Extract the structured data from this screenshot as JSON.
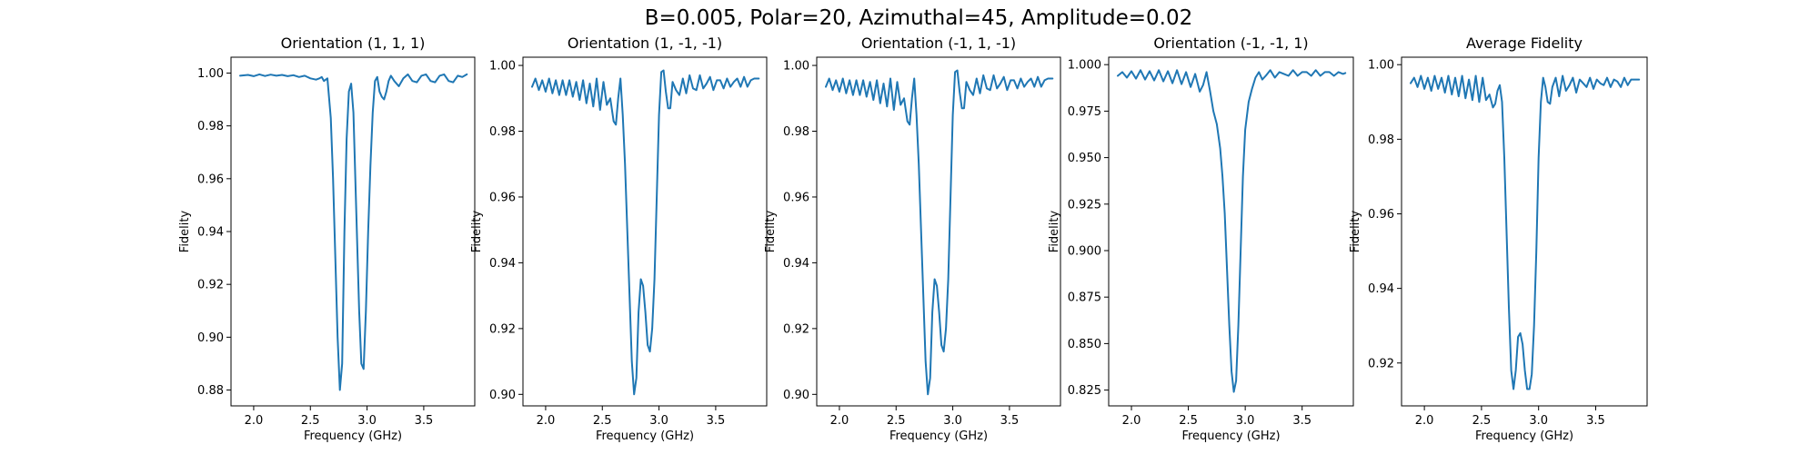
{
  "figure": {
    "suptitle": "B=0.005, Polar=20, Azimuthal=45, Amplitude=0.02",
    "line_color": "#1f77b4"
  },
  "chart_data": [
    {
      "type": "line",
      "title": "Orientation (1, 1, 1)",
      "xlabel": "Frequency (GHz)",
      "ylabel": "Fidelity",
      "xlim": [
        1.8,
        3.95
      ],
      "ylim": [
        0.874,
        1.006
      ],
      "xticks": [
        2.0,
        2.5,
        3.0,
        3.5
      ],
      "xtick_labels": [
        "2.0",
        "2.5",
        "3.0",
        "3.5"
      ],
      "yticks": [
        0.88,
        0.9,
        0.92,
        0.94,
        0.96,
        0.98,
        1.0
      ],
      "ytick_labels": [
        "0.88",
        "0.90",
        "0.92",
        "0.94",
        "0.96",
        "0.98",
        "1.00"
      ],
      "x": [
        1.88,
        1.95,
        2.0,
        2.05,
        2.1,
        2.15,
        2.2,
        2.25,
        2.3,
        2.35,
        2.4,
        2.45,
        2.5,
        2.55,
        2.58,
        2.6,
        2.62,
        2.65,
        2.68,
        2.7,
        2.72,
        2.74,
        2.76,
        2.78,
        2.8,
        2.82,
        2.84,
        2.86,
        2.88,
        2.9,
        2.93,
        2.95,
        2.97,
        2.99,
        3.01,
        3.03,
        3.05,
        3.07,
        3.09,
        3.11,
        3.13,
        3.15,
        3.17,
        3.19,
        3.21,
        3.24,
        3.28,
        3.32,
        3.36,
        3.4,
        3.44,
        3.48,
        3.52,
        3.56,
        3.6,
        3.64,
        3.68,
        3.72,
        3.76,
        3.8,
        3.84,
        3.88
      ],
      "series": [
        {
          "values": [
            0.999,
            0.9993,
            0.9988,
            0.9995,
            0.9989,
            0.9994,
            0.999,
            0.9993,
            0.9988,
            0.9992,
            0.9985,
            0.999,
            0.998,
            0.9975,
            0.998,
            0.9985,
            0.997,
            0.998,
            0.983,
            0.96,
            0.93,
            0.9,
            0.88,
            0.89,
            0.94,
            0.975,
            0.993,
            0.996,
            0.985,
            0.955,
            0.91,
            0.89,
            0.888,
            0.91,
            0.94,
            0.965,
            0.985,
            0.997,
            0.9985,
            0.993,
            0.991,
            0.99,
            0.993,
            0.997,
            0.999,
            0.997,
            0.995,
            0.998,
            0.9995,
            0.997,
            0.9965,
            0.999,
            0.9995,
            0.997,
            0.9965,
            0.999,
            0.9995,
            0.997,
            0.9965,
            0.999,
            0.9985,
            0.9995
          ]
        }
      ]
    },
    {
      "type": "line",
      "title": "Orientation (1, -1, -1)",
      "xlabel": "Frequency (GHz)",
      "ylabel": "Fidelity",
      "xlim": [
        1.8,
        3.95
      ],
      "ylim": [
        0.8965,
        1.0025
      ],
      "xticks": [
        2.0,
        2.5,
        3.0,
        3.5
      ],
      "xtick_labels": [
        "2.0",
        "2.5",
        "3.0",
        "3.5"
      ],
      "yticks": [
        0.9,
        0.92,
        0.94,
        0.96,
        0.98,
        1.0
      ],
      "ytick_labels": [
        "0.90",
        "0.92",
        "0.94",
        "0.96",
        "0.98",
        "1.00"
      ],
      "x": [
        1.88,
        1.91,
        1.94,
        1.97,
        2.0,
        2.03,
        2.06,
        2.09,
        2.12,
        2.15,
        2.18,
        2.21,
        2.24,
        2.27,
        2.3,
        2.33,
        2.36,
        2.39,
        2.42,
        2.45,
        2.48,
        2.51,
        2.54,
        2.57,
        2.6,
        2.62,
        2.64,
        2.66,
        2.68,
        2.7,
        2.72,
        2.74,
        2.76,
        2.78,
        2.8,
        2.82,
        2.84,
        2.86,
        2.88,
        2.9,
        2.92,
        2.94,
        2.96,
        2.98,
        3.0,
        3.02,
        3.04,
        3.06,
        3.08,
        3.1,
        3.12,
        3.15,
        3.18,
        3.21,
        3.24,
        3.27,
        3.3,
        3.33,
        3.36,
        3.39,
        3.42,
        3.45,
        3.48,
        3.51,
        3.54,
        3.57,
        3.6,
        3.63,
        3.66,
        3.69,
        3.72,
        3.75,
        3.78,
        3.81,
        3.84,
        3.88
      ],
      "series": [
        {
          "values": [
            0.9935,
            0.996,
            0.9925,
            0.9955,
            0.992,
            0.996,
            0.9915,
            0.9955,
            0.991,
            0.9955,
            0.991,
            0.9955,
            0.9905,
            0.995,
            0.9895,
            0.9955,
            0.9885,
            0.9945,
            0.9875,
            0.996,
            0.9865,
            0.995,
            0.988,
            0.99,
            0.983,
            0.982,
            0.99,
            0.996,
            0.985,
            0.97,
            0.95,
            0.93,
            0.91,
            0.9,
            0.905,
            0.925,
            0.935,
            0.933,
            0.925,
            0.915,
            0.913,
            0.92,
            0.935,
            0.96,
            0.985,
            0.998,
            0.9985,
            0.992,
            0.987,
            0.987,
            0.995,
            0.9925,
            0.991,
            0.996,
            0.9915,
            0.997,
            0.993,
            0.9925,
            0.997,
            0.993,
            0.9945,
            0.9965,
            0.9925,
            0.9955,
            0.9955,
            0.993,
            0.996,
            0.9935,
            0.995,
            0.996,
            0.9935,
            0.9965,
            0.9935,
            0.9955,
            0.996,
            0.996
          ]
        }
      ]
    },
    {
      "type": "line",
      "title": "Orientation (-1, 1, -1)",
      "xlabel": "Frequency (GHz)",
      "ylabel": "Fidelity",
      "xlim": [
        1.8,
        3.95
      ],
      "ylim": [
        0.8965,
        1.0025
      ],
      "xticks": [
        2.0,
        2.5,
        3.0,
        3.5
      ],
      "xtick_labels": [
        "2.0",
        "2.5",
        "3.0",
        "3.5"
      ],
      "yticks": [
        0.9,
        0.92,
        0.94,
        0.96,
        0.98,
        1.0
      ],
      "ytick_labels": [
        "0.90",
        "0.92",
        "0.94",
        "0.96",
        "0.98",
        "1.00"
      ],
      "x": [
        1.88,
        1.91,
        1.94,
        1.97,
        2.0,
        2.03,
        2.06,
        2.09,
        2.12,
        2.15,
        2.18,
        2.21,
        2.24,
        2.27,
        2.3,
        2.33,
        2.36,
        2.39,
        2.42,
        2.45,
        2.48,
        2.51,
        2.54,
        2.57,
        2.6,
        2.62,
        2.64,
        2.66,
        2.68,
        2.7,
        2.72,
        2.74,
        2.76,
        2.78,
        2.8,
        2.82,
        2.84,
        2.86,
        2.88,
        2.9,
        2.92,
        2.94,
        2.96,
        2.98,
        3.0,
        3.02,
        3.04,
        3.06,
        3.08,
        3.1,
        3.12,
        3.15,
        3.18,
        3.21,
        3.24,
        3.27,
        3.3,
        3.33,
        3.36,
        3.39,
        3.42,
        3.45,
        3.48,
        3.51,
        3.54,
        3.57,
        3.6,
        3.63,
        3.66,
        3.69,
        3.72,
        3.75,
        3.78,
        3.81,
        3.84,
        3.88
      ],
      "series": [
        {
          "values": [
            0.9935,
            0.996,
            0.9925,
            0.9955,
            0.992,
            0.996,
            0.9915,
            0.9955,
            0.991,
            0.9955,
            0.991,
            0.9955,
            0.9905,
            0.995,
            0.9895,
            0.9955,
            0.9885,
            0.9945,
            0.9875,
            0.996,
            0.9865,
            0.995,
            0.988,
            0.99,
            0.983,
            0.982,
            0.99,
            0.996,
            0.985,
            0.97,
            0.95,
            0.93,
            0.91,
            0.9,
            0.905,
            0.925,
            0.935,
            0.933,
            0.925,
            0.915,
            0.913,
            0.92,
            0.935,
            0.96,
            0.985,
            0.998,
            0.9985,
            0.992,
            0.987,
            0.987,
            0.995,
            0.9925,
            0.991,
            0.996,
            0.9915,
            0.997,
            0.993,
            0.9925,
            0.997,
            0.993,
            0.9945,
            0.9965,
            0.9925,
            0.9955,
            0.9955,
            0.993,
            0.996,
            0.9935,
            0.995,
            0.996,
            0.9935,
            0.9965,
            0.9935,
            0.9955,
            0.996,
            0.996
          ]
        }
      ]
    },
    {
      "type": "line",
      "title": "Orientation (-1, -1, 1)",
      "xlabel": "Frequency (GHz)",
      "ylabel": "Fidelity",
      "xlim": [
        1.8,
        3.95
      ],
      "ylim": [
        0.8165,
        1.004
      ],
      "xticks": [
        2.0,
        2.5,
        3.0,
        3.5
      ],
      "xtick_labels": [
        "2.0",
        "2.5",
        "3.0",
        "3.5"
      ],
      "yticks": [
        0.825,
        0.85,
        0.875,
        0.9,
        0.925,
        0.95,
        0.975,
        1.0
      ],
      "ytick_labels": [
        "0.825",
        "0.850",
        "0.875",
        "0.900",
        "0.925",
        "0.950",
        "0.975",
        "1.000"
      ],
      "x": [
        1.88,
        1.92,
        1.96,
        2.0,
        2.04,
        2.08,
        2.12,
        2.16,
        2.2,
        2.24,
        2.28,
        2.32,
        2.36,
        2.4,
        2.44,
        2.48,
        2.52,
        2.56,
        2.6,
        2.63,
        2.66,
        2.69,
        2.72,
        2.75,
        2.78,
        2.8,
        2.82,
        2.84,
        2.86,
        2.88,
        2.9,
        2.92,
        2.94,
        2.96,
        2.98,
        3.0,
        3.03,
        3.06,
        3.09,
        3.12,
        3.15,
        3.18,
        3.22,
        3.26,
        3.3,
        3.34,
        3.38,
        3.42,
        3.46,
        3.5,
        3.54,
        3.58,
        3.62,
        3.66,
        3.7,
        3.74,
        3.78,
        3.82,
        3.86,
        3.88
      ],
      "series": [
        {
          "values": [
            0.994,
            0.996,
            0.993,
            0.9965,
            0.9925,
            0.997,
            0.992,
            0.9965,
            0.9915,
            0.997,
            0.991,
            0.9965,
            0.99,
            0.997,
            0.9895,
            0.996,
            0.988,
            0.995,
            0.9855,
            0.989,
            0.996,
            0.986,
            0.975,
            0.968,
            0.955,
            0.94,
            0.92,
            0.89,
            0.86,
            0.835,
            0.824,
            0.83,
            0.86,
            0.9,
            0.94,
            0.965,
            0.98,
            0.987,
            0.993,
            0.996,
            0.992,
            0.994,
            0.997,
            0.993,
            0.996,
            0.995,
            0.994,
            0.997,
            0.994,
            0.996,
            0.996,
            0.994,
            0.997,
            0.994,
            0.996,
            0.996,
            0.994,
            0.996,
            0.995,
            0.9955
          ]
        }
      ]
    },
    {
      "type": "line",
      "title": "Average Fidelity",
      "xlabel": "Frequency (GHz)",
      "ylabel": "Fidelity",
      "xlim": [
        1.8,
        3.95
      ],
      "ylim": [
        0.9085,
        1.002
      ],
      "xticks": [
        2.0,
        2.5,
        3.0,
        3.5
      ],
      "xtick_labels": [
        "2.0",
        "2.5",
        "3.0",
        "3.5"
      ],
      "yticks": [
        0.92,
        0.94,
        0.96,
        0.98,
        1.0
      ],
      "ytick_labels": [
        "0.92",
        "0.94",
        "0.96",
        "0.98",
        "1.00"
      ],
      "x": [
        1.88,
        1.91,
        1.94,
        1.97,
        2.0,
        2.03,
        2.06,
        2.09,
        2.12,
        2.15,
        2.18,
        2.21,
        2.24,
        2.27,
        2.3,
        2.33,
        2.36,
        2.39,
        2.42,
        2.45,
        2.48,
        2.51,
        2.54,
        2.57,
        2.6,
        2.62,
        2.64,
        2.66,
        2.68,
        2.7,
        2.72,
        2.74,
        2.76,
        2.78,
        2.8,
        2.82,
        2.84,
        2.86,
        2.88,
        2.9,
        2.92,
        2.94,
        2.96,
        2.98,
        3.0,
        3.02,
        3.04,
        3.06,
        3.08,
        3.1,
        3.12,
        3.15,
        3.18,
        3.21,
        3.24,
        3.27,
        3.3,
        3.33,
        3.36,
        3.39,
        3.42,
        3.45,
        3.48,
        3.51,
        3.54,
        3.57,
        3.6,
        3.63,
        3.66,
        3.69,
        3.72,
        3.75,
        3.78,
        3.81,
        3.84,
        3.88
      ],
      "series": [
        {
          "values": [
            0.995,
            0.9965,
            0.994,
            0.997,
            0.9935,
            0.9965,
            0.993,
            0.997,
            0.9935,
            0.9965,
            0.9925,
            0.997,
            0.992,
            0.9965,
            0.9915,
            0.997,
            0.991,
            0.996,
            0.9905,
            0.997,
            0.99,
            0.9965,
            0.9905,
            0.992,
            0.9885,
            0.9895,
            0.993,
            0.9945,
            0.99,
            0.975,
            0.955,
            0.935,
            0.918,
            0.913,
            0.918,
            0.927,
            0.928,
            0.925,
            0.918,
            0.913,
            0.913,
            0.917,
            0.93,
            0.95,
            0.975,
            0.99,
            0.9965,
            0.994,
            0.99,
            0.9895,
            0.994,
            0.9965,
            0.9915,
            0.997,
            0.993,
            0.9945,
            0.9965,
            0.9925,
            0.996,
            0.995,
            0.994,
            0.9965,
            0.9935,
            0.996,
            0.995,
            0.9945,
            0.9965,
            0.994,
            0.996,
            0.9955,
            0.994,
            0.9965,
            0.9945,
            0.996,
            0.996,
            0.996
          ]
        }
      ]
    }
  ]
}
